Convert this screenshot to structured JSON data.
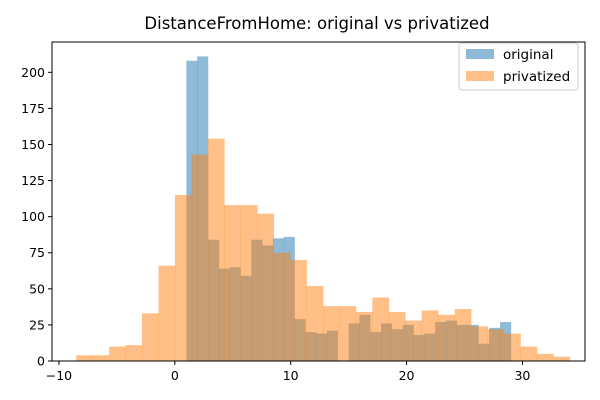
{
  "chart_data": {
    "type": "histogram",
    "title": "DistanceFromHome: original vs privatized",
    "xlabel": "",
    "ylabel": "",
    "xlim": [
      -10.6,
      35.4
    ],
    "ylim": [
      0,
      221
    ],
    "x_ticks": [
      -10,
      0,
      10,
      20,
      30
    ],
    "y_ticks": [
      0,
      25,
      50,
      75,
      100,
      125,
      150,
      175,
      200
    ],
    "grid": false,
    "legend_position": "top-right",
    "series": [
      {
        "name": "original",
        "color": "#1f77b4",
        "opacity": 0.5,
        "bin_width": 0.93,
        "bins": [
          {
            "x0": 1.0,
            "y": 208
          },
          {
            "x0": 1.93,
            "y": 211
          },
          {
            "x0": 2.87,
            "y": 84
          },
          {
            "x0": 3.8,
            "y": 64
          },
          {
            "x0": 4.73,
            "y": 65
          },
          {
            "x0": 5.67,
            "y": 59
          },
          {
            "x0": 6.6,
            "y": 84
          },
          {
            "x0": 7.53,
            "y": 80
          },
          {
            "x0": 8.47,
            "y": 85
          },
          {
            "x0": 9.4,
            "y": 86
          },
          {
            "x0": 10.33,
            "y": 29
          },
          {
            "x0": 11.27,
            "y": 20
          },
          {
            "x0": 12.2,
            "y": 19
          },
          {
            "x0": 13.13,
            "y": 21
          },
          {
            "x0": 14.07,
            "y": 0
          },
          {
            "x0": 15.0,
            "y": 26
          },
          {
            "x0": 15.93,
            "y": 32
          },
          {
            "x0": 16.87,
            "y": 20
          },
          {
            "x0": 17.8,
            "y": 26
          },
          {
            "x0": 18.73,
            "y": 22
          },
          {
            "x0": 19.67,
            "y": 25
          },
          {
            "x0": 20.6,
            "y": 18
          },
          {
            "x0": 21.53,
            "y": 19
          },
          {
            "x0": 22.47,
            "y": 27
          },
          {
            "x0": 23.4,
            "y": 28
          },
          {
            "x0": 24.33,
            "y": 25
          },
          {
            "x0": 25.27,
            "y": 25
          },
          {
            "x0": 26.2,
            "y": 12
          },
          {
            "x0": 27.13,
            "y": 23
          },
          {
            "x0": 28.07,
            "y": 27
          }
        ]
      },
      {
        "name": "privatized",
        "color": "#ff7f0e",
        "opacity": 0.5,
        "bin_width": 1.42,
        "bins": [
          {
            "x0": -8.51,
            "y": 4
          },
          {
            "x0": -7.09,
            "y": 4
          },
          {
            "x0": -5.67,
            "y": 10
          },
          {
            "x0": -4.25,
            "y": 11
          },
          {
            "x0": -2.83,
            "y": 33
          },
          {
            "x0": -1.41,
            "y": 66
          },
          {
            "x0": 0.01,
            "y": 115
          },
          {
            "x0": 1.43,
            "y": 143
          },
          {
            "x0": 2.85,
            "y": 154
          },
          {
            "x0": 4.27,
            "y": 108
          },
          {
            "x0": 5.69,
            "y": 108
          },
          {
            "x0": 7.11,
            "y": 102
          },
          {
            "x0": 8.53,
            "y": 75
          },
          {
            "x0": 9.95,
            "y": 70
          },
          {
            "x0": 11.37,
            "y": 52
          },
          {
            "x0": 12.79,
            "y": 38
          },
          {
            "x0": 14.21,
            "y": 38
          },
          {
            "x0": 15.63,
            "y": 34
          },
          {
            "x0": 17.05,
            "y": 44
          },
          {
            "x0": 18.47,
            "y": 34
          },
          {
            "x0": 19.89,
            "y": 28
          },
          {
            "x0": 21.31,
            "y": 35
          },
          {
            "x0": 22.73,
            "y": 32
          },
          {
            "x0": 24.15,
            "y": 36
          },
          {
            "x0": 25.57,
            "y": 24
          },
          {
            "x0": 26.99,
            "y": 22
          },
          {
            "x0": 28.41,
            "y": 19
          },
          {
            "x0": 29.83,
            "y": 10
          },
          {
            "x0": 31.25,
            "y": 5
          },
          {
            "x0": 32.67,
            "y": 3
          }
        ]
      }
    ]
  }
}
